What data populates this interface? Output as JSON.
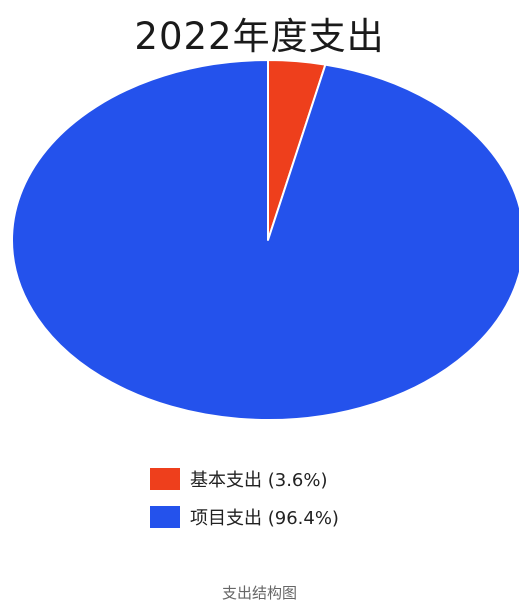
{
  "chart_data": {
    "type": "pie",
    "title": "2022年度支出",
    "slices": [
      {
        "label": "基本支出",
        "percent_text": "3.6%",
        "value": 3.6,
        "color": "#ee3f1c"
      },
      {
        "label": "项目支出",
        "percent_text": "96.4%",
        "value": 96.4,
        "color": "#2452ec"
      }
    ],
    "legend": {
      "placement": "bottom",
      "items": [
        {
          "text": "基本支出 (3.6%)",
          "color": "#ee3f1c"
        },
        {
          "text": "项目支出 (96.4%)",
          "color": "#2452ec"
        }
      ]
    }
  },
  "caption": "支出结构图"
}
